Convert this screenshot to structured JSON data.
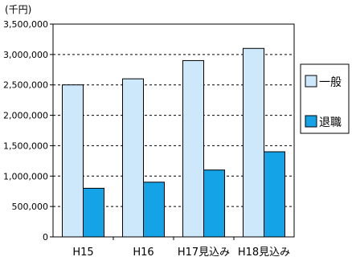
{
  "chart_data": {
    "type": "bar",
    "unit_label": "(千円)",
    "categories": [
      "H15",
      "H16",
      "H17見込み",
      "H18見込み"
    ],
    "series": [
      {
        "name": "一般",
        "color": "#cce8fa",
        "values": [
          2500000,
          2600000,
          2900000,
          3100000
        ]
      },
      {
        "name": "退職",
        "color": "#13a3e6",
        "values": [
          800000,
          900000,
          1100000,
          1400000
        ]
      }
    ],
    "ylim": [
      0,
      3500000
    ],
    "yticks": [
      0,
      500000,
      1000000,
      1500000,
      2000000,
      2500000,
      3000000,
      3500000
    ],
    "ytick_labels": [
      "0",
      "500,000",
      "1,000,000",
      "1,500,000",
      "2,000,000",
      "2,500,000",
      "3,000,000",
      "3,500,000"
    ],
    "grid": "horizontal dashed",
    "legend_position": "right"
  }
}
